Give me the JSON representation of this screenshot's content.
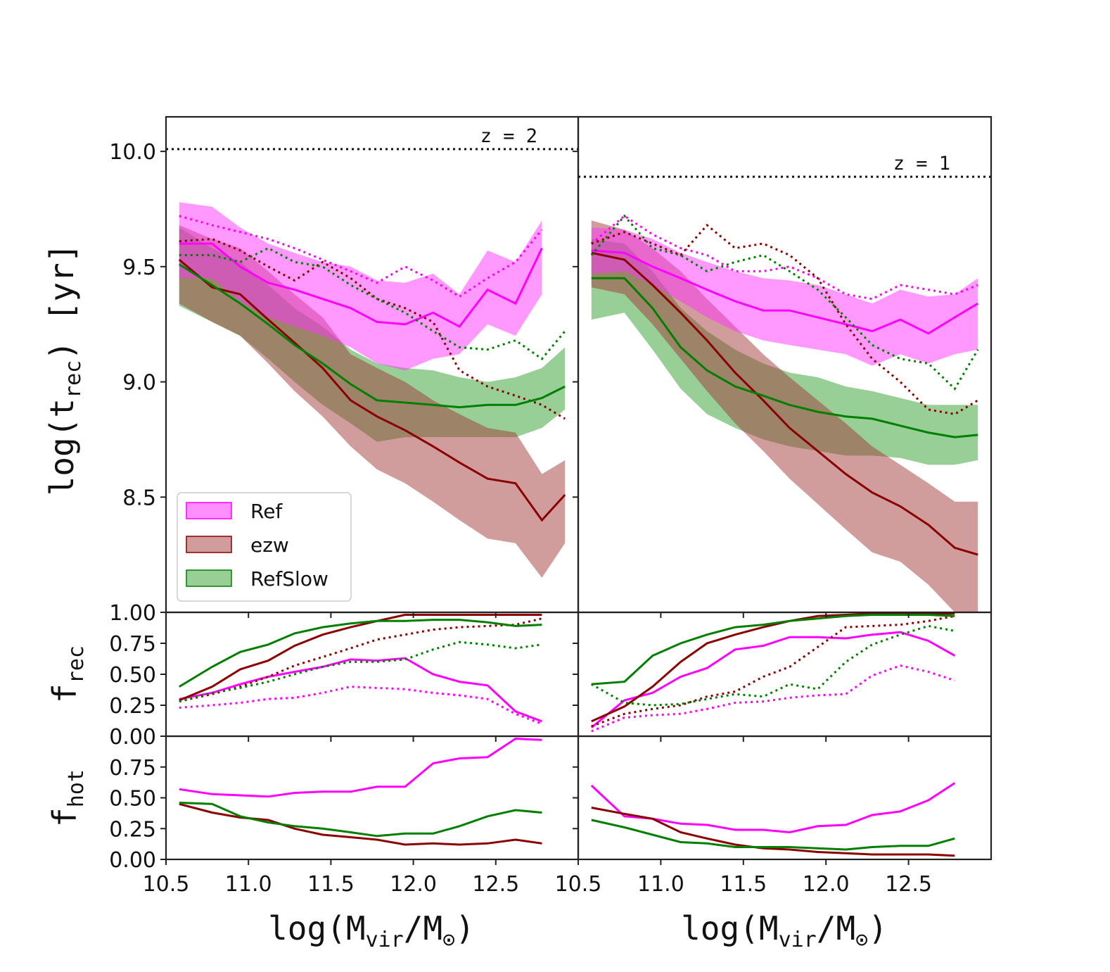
{
  "colors": {
    "Ref": "#ff00ff",
    "ezw": "#8b0000",
    "RefSlow": "#007f00",
    "Ref_band": "#ff33ff",
    "ezw_band": "#a33a3a",
    "RefSlow_band": "#2f9f2f"
  },
  "labels": {
    "ylabel_top": "log(t",
    "ylabel_top_sub": "rec",
    "ylabel_top_end": ") [yr]",
    "ylabel_mid": "f",
    "ylabel_mid_sub": "rec",
    "ylabel_bot": "f",
    "ylabel_bot_sub": "hot",
    "xlabel": "log(M",
    "xlabel_sub": "vir",
    "xlabel_mid": "/M",
    "xlabel_sun": "⊙",
    "xlabel_end": ")"
  },
  "legend": [
    "Ref",
    "ezw",
    "RefSlow"
  ],
  "chart_data": {
    "type": "line",
    "xlim": [
      10.5,
      13.0
    ],
    "xticks": [
      "10.5",
      "11.0",
      "11.5",
      "12.0",
      "12.5"
    ],
    "x": [
      10.58,
      10.78,
      10.95,
      11.12,
      11.28,
      11.45,
      11.62,
      11.78,
      11.95,
      12.12,
      12.28,
      12.45,
      12.62,
      12.78,
      12.92
    ],
    "top": {
      "ylim": [
        8.0,
        10.15
      ],
      "yticks": [
        "8.5",
        "9.0",
        "9.5",
        "10.0"
      ],
      "panels": [
        {
          "annotation": "z = 2",
          "hline": 10.01,
          "Ref": {
            "mid": [
              9.6,
              9.6,
              9.5,
              9.43,
              9.4,
              9.36,
              9.32,
              9.26,
              9.25,
              9.3,
              9.24,
              9.4,
              9.34,
              9.58
            ],
            "lo": [
              9.45,
              9.45,
              9.35,
              9.28,
              9.24,
              9.2,
              9.15,
              9.08,
              9.05,
              9.1,
              9.12,
              9.25,
              9.2,
              9.38
            ],
            "hi": [
              9.78,
              9.76,
              9.67,
              9.6,
              9.56,
              9.52,
              9.5,
              9.44,
              9.43,
              9.47,
              9.38,
              9.57,
              9.52,
              9.7
            ],
            "dotted": [
              9.72,
              9.68,
              9.65,
              9.62,
              9.58,
              9.53,
              9.48,
              9.43,
              9.5,
              9.44,
              9.37,
              9.45,
              9.52,
              9.66
            ]
          },
          "ezw": {
            "mid": [
              9.53,
              9.41,
              9.38,
              9.27,
              9.17,
              9.06,
              8.92,
              8.85,
              8.79,
              8.72,
              8.65,
              8.58,
              8.56,
              8.4,
              8.51
            ],
            "lo": [
              9.34,
              9.26,
              9.2,
              9.08,
              8.96,
              8.85,
              8.72,
              8.62,
              8.56,
              8.48,
              8.4,
              8.32,
              8.3,
              8.15,
              8.3
            ],
            "hi": [
              9.68,
              9.62,
              9.58,
              9.48,
              9.38,
              9.28,
              9.12,
              9.06,
              9.0,
              8.92,
              8.86,
              8.8,
              8.78,
              8.6,
              8.66
            ],
            "dotted": [
              9.61,
              9.62,
              9.57,
              9.5,
              9.44,
              9.52,
              9.45,
              9.36,
              9.32,
              9.26,
              9.05,
              8.98,
              8.94,
              8.9,
              8.84
            ]
          },
          "RefSlow": {
            "mid": [
              9.51,
              9.42,
              9.34,
              9.25,
              9.16,
              9.08,
              8.99,
              8.92,
              8.91,
              8.9,
              8.89,
              8.9,
              8.9,
              8.93,
              8.98
            ],
            "lo": [
              9.33,
              9.26,
              9.2,
              9.1,
              9.0,
              8.9,
              8.82,
              8.74,
              8.76,
              8.76,
              8.76,
              8.76,
              8.76,
              8.8,
              8.88
            ],
            "hi": [
              9.67,
              9.58,
              9.52,
              9.42,
              9.32,
              9.24,
              9.14,
              9.08,
              9.06,
              9.05,
              9.02,
              9.0,
              9.02,
              9.06,
              9.15
            ],
            "dotted": [
              9.55,
              9.55,
              9.52,
              9.58,
              9.52,
              9.5,
              9.42,
              9.36,
              9.3,
              9.22,
              9.15,
              9.14,
              9.18,
              9.1,
              9.22
            ]
          }
        },
        {
          "annotation": "z = 1",
          "hline": 9.89,
          "Ref": {
            "mid": [
              9.57,
              9.56,
              9.5,
              9.45,
              9.4,
              9.35,
              9.31,
              9.31,
              9.28,
              9.25,
              9.22,
              9.27,
              9.21,
              9.28,
              9.34
            ],
            "lo": [
              9.47,
              9.48,
              9.42,
              9.35,
              9.28,
              9.22,
              9.18,
              9.16,
              9.14,
              9.12,
              9.07,
              9.12,
              9.08,
              9.12,
              9.14
            ],
            "hi": [
              9.67,
              9.66,
              9.62,
              9.56,
              9.52,
              9.48,
              9.45,
              9.44,
              9.42,
              9.38,
              9.34,
              9.4,
              9.37,
              9.38,
              9.45
            ],
            "dotted": [
              9.6,
              9.72,
              9.64,
              9.58,
              9.55,
              9.48,
              9.48,
              9.5,
              9.45,
              9.38,
              9.36,
              9.42,
              9.4,
              9.38,
              9.42
            ]
          },
          "ezw": {
            "mid": [
              9.56,
              9.53,
              9.42,
              9.3,
              9.18,
              9.04,
              8.92,
              8.8,
              8.7,
              8.6,
              8.52,
              8.46,
              8.38,
              8.28,
              8.25
            ],
            "lo": [
              9.41,
              9.38,
              9.25,
              9.1,
              8.96,
              8.82,
              8.7,
              8.58,
              8.47,
              8.36,
              8.26,
              8.22,
              8.12,
              8.0,
              8.0
            ],
            "hi": [
              9.7,
              9.66,
              9.58,
              9.48,
              9.36,
              9.24,
              9.12,
              9.02,
              8.92,
              8.82,
              8.72,
              8.64,
              8.56,
              8.48,
              8.48
            ],
            "dotted": [
              9.6,
              9.65,
              9.6,
              9.55,
              9.68,
              9.58,
              9.6,
              9.55,
              9.45,
              9.25,
              9.1,
              9.0,
              8.88,
              8.86,
              8.92
            ]
          },
          "RefSlow": {
            "mid": [
              9.45,
              9.45,
              9.32,
              9.15,
              9.05,
              8.98,
              8.94,
              8.9,
              8.87,
              8.85,
              8.84,
              8.81,
              8.78,
              8.76,
              8.77
            ],
            "lo": [
              9.27,
              9.3,
              9.14,
              8.97,
              8.86,
              8.8,
              8.75,
              8.72,
              8.7,
              8.68,
              8.68,
              8.67,
              8.64,
              8.64,
              8.66
            ],
            "hi": [
              9.62,
              9.6,
              9.48,
              9.32,
              9.22,
              9.14,
              9.08,
              9.04,
              9.02,
              8.98,
              8.96,
              8.93,
              8.9,
              8.9,
              8.9
            ],
            "dotted": [
              9.55,
              9.72,
              9.58,
              9.55,
              9.48,
              9.52,
              9.55,
              9.48,
              9.4,
              9.28,
              9.16,
              9.1,
              9.08,
              8.97,
              9.14
            ]
          }
        }
      ]
    },
    "mid": {
      "ylim": [
        0.0,
        1.0
      ],
      "yticks": [
        "0.00",
        "0.25",
        "0.50",
        "0.75",
        "1.00"
      ],
      "panels": [
        {
          "Ref": {
            "solid": [
              0.3,
              0.35,
              0.42,
              0.48,
              0.52,
              0.56,
              0.62,
              0.61,
              0.63,
              0.5,
              0.44,
              0.41,
              0.2,
              0.12
            ],
            "dotted": [
              0.23,
              0.25,
              0.27,
              0.3,
              0.31,
              0.35,
              0.4,
              0.39,
              0.38,
              0.35,
              0.33,
              0.3,
              0.18,
              0.1
            ]
          },
          "ezw": {
            "solid": [
              0.29,
              0.4,
              0.54,
              0.61,
              0.73,
              0.82,
              0.88,
              0.93,
              0.98,
              0.98,
              0.98,
              0.98,
              0.98,
              0.98
            ],
            "dotted": [
              0.28,
              0.34,
              0.4,
              0.48,
              0.57,
              0.64,
              0.71,
              0.78,
              0.82,
              0.86,
              0.88,
              0.89,
              0.9,
              0.95
            ]
          },
          "RefSlow": {
            "solid": [
              0.4,
              0.56,
              0.68,
              0.74,
              0.83,
              0.88,
              0.91,
              0.93,
              0.93,
              0.94,
              0.94,
              0.92,
              0.89,
              0.9
            ],
            "dotted": [
              0.28,
              0.35,
              0.39,
              0.44,
              0.5,
              0.56,
              0.6,
              0.6,
              0.62,
              0.7,
              0.76,
              0.74,
              0.71,
              0.74
            ]
          }
        },
        {
          "Ref": {
            "solid": [
              0.07,
              0.29,
              0.35,
              0.48,
              0.55,
              0.7,
              0.73,
              0.8,
              0.8,
              0.79,
              0.82,
              0.84,
              0.77,
              0.65
            ],
            "dotted": [
              0.04,
              0.15,
              0.17,
              0.18,
              0.22,
              0.27,
              0.28,
              0.31,
              0.33,
              0.34,
              0.49,
              0.57,
              0.52,
              0.45
            ]
          },
          "ezw": {
            "solid": [
              0.12,
              0.24,
              0.4,
              0.6,
              0.75,
              0.82,
              0.88,
              0.93,
              0.97,
              0.98,
              0.99,
              0.99,
              0.99,
              0.99
            ],
            "dotted": [
              0.08,
              0.18,
              0.22,
              0.25,
              0.32,
              0.36,
              0.48,
              0.56,
              0.72,
              0.88,
              0.89,
              0.9,
              0.93,
              0.97
            ]
          },
          "RefSlow": {
            "solid": [
              0.42,
              0.44,
              0.65,
              0.75,
              0.82,
              0.88,
              0.9,
              0.93,
              0.95,
              0.97,
              0.98,
              0.98,
              0.98,
              0.97
            ],
            "dotted": [
              0.42,
              0.27,
              0.25,
              0.26,
              0.3,
              0.34,
              0.32,
              0.42,
              0.38,
              0.6,
              0.74,
              0.82,
              0.89,
              0.85
            ]
          }
        }
      ]
    },
    "bot": {
      "ylim": [
        0.0,
        1.0
      ],
      "yticks": [
        "0.00",
        "0.25",
        "0.50",
        "0.75"
      ],
      "panels": [
        {
          "Ref": [
            0.57,
            0.53,
            0.52,
            0.51,
            0.54,
            0.55,
            0.55,
            0.59,
            0.59,
            0.78,
            0.82,
            0.83,
            0.98,
            0.97
          ],
          "ezw": [
            0.45,
            0.38,
            0.34,
            0.32,
            0.25,
            0.2,
            0.18,
            0.16,
            0.12,
            0.13,
            0.12,
            0.13,
            0.16,
            0.13
          ],
          "RefSlow": [
            0.46,
            0.45,
            0.35,
            0.3,
            0.27,
            0.25,
            0.22,
            0.19,
            0.21,
            0.21,
            0.27,
            0.35,
            0.4,
            0.38
          ]
        },
        {
          "Ref": [
            0.6,
            0.35,
            0.33,
            0.29,
            0.28,
            0.24,
            0.24,
            0.22,
            0.27,
            0.28,
            0.36,
            0.39,
            0.48,
            0.62
          ],
          "ezw": [
            0.42,
            0.37,
            0.33,
            0.22,
            0.17,
            0.12,
            0.09,
            0.08,
            0.06,
            0.05,
            0.04,
            0.04,
            0.04,
            0.03
          ],
          "RefSlow": [
            0.32,
            0.26,
            0.2,
            0.14,
            0.13,
            0.1,
            0.1,
            0.1,
            0.09,
            0.08,
            0.1,
            0.11,
            0.11,
            0.17
          ]
        }
      ]
    }
  }
}
